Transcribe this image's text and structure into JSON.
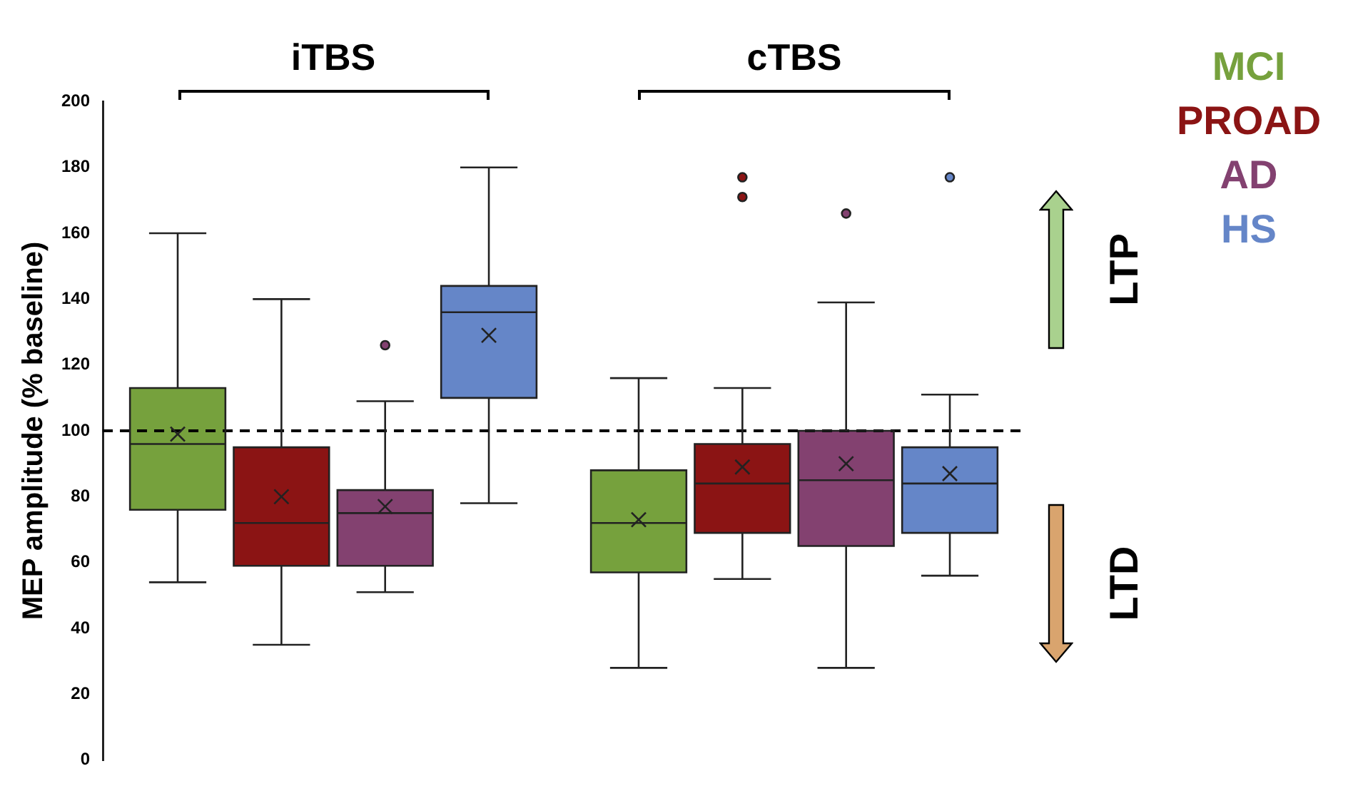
{
  "chart_data": {
    "type": "box",
    "categories": [
      "iTBS",
      "cTBS"
    ],
    "ylabel": "MEP amplitude (% baseline)",
    "ylim": [
      0,
      200
    ],
    "yticks": [
      0,
      20,
      40,
      60,
      80,
      100,
      120,
      140,
      160,
      180,
      200
    ],
    "grid": false,
    "legend": "top right",
    "ref_lines": [
      {
        "axis": "y",
        "value": 100,
        "color": "#000000",
        "line_style": "dashed"
      }
    ],
    "annotations": [
      "LTP",
      "LTD"
    ],
    "series": [
      {
        "name": "MCI",
        "color": "#76a13d",
        "boxes": [
          {
            "low": 54,
            "q1": 76,
            "median": 96,
            "q3": 113,
            "high": 160,
            "mean": 99
          },
          {
            "low": 28,
            "q1": 57,
            "median": 72,
            "q3": 88,
            "high": 116,
            "mean": 73
          }
        ]
      },
      {
        "name": "PROAD",
        "color": "#8b1414",
        "boxes": [
          {
            "low": 35,
            "q1": 59,
            "median": 72,
            "q3": 95,
            "high": 140,
            "mean": 80
          },
          {
            "low": 55,
            "q1": 69,
            "median": 84,
            "q3": 96,
            "high": 113,
            "mean": 89,
            "outliers": [
              171,
              177
            ]
          }
        ]
      },
      {
        "name": "AD",
        "color": "#834170",
        "boxes": [
          {
            "low": 51,
            "q1": 59,
            "median": 75,
            "q3": 82,
            "high": 109,
            "mean": 77,
            "outliers": [
              126
            ]
          },
          {
            "low": 28,
            "q1": 65,
            "median": 85,
            "q3": 100,
            "high": 139,
            "mean": 90,
            "outliers": [
              166
            ]
          }
        ]
      },
      {
        "name": "HS",
        "color": "#6586c8",
        "boxes": [
          {
            "low": 78,
            "q1": 110,
            "median": 136,
            "q3": 144,
            "high": 180,
            "mean": 129
          },
          {
            "low": 56,
            "q1": 69,
            "median": 84,
            "q3": 95,
            "high": 111,
            "mean": 87,
            "outliers": [
              177
            ]
          }
        ]
      }
    ]
  }
}
